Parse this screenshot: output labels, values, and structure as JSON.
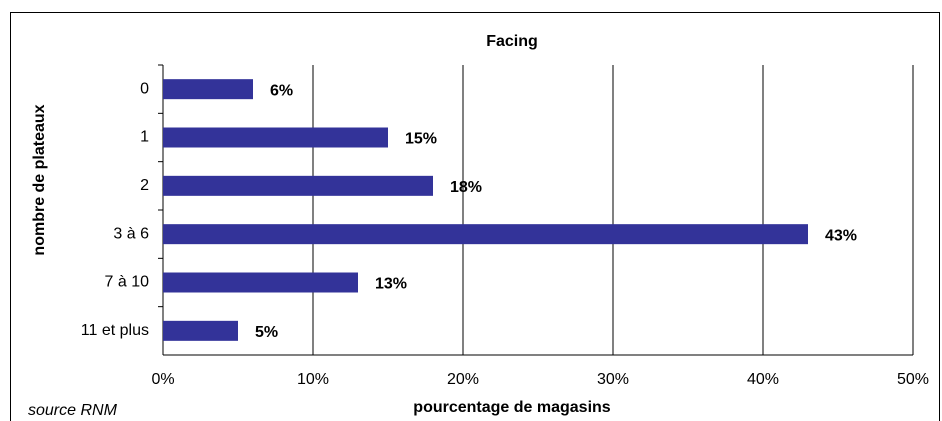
{
  "chart_data": {
    "type": "bar",
    "orientation": "horizontal",
    "title": "Facing",
    "x_label": "pourcentage de magasins",
    "y_label": "nombre de plateaux",
    "source": "source RNM",
    "categories": [
      "0",
      "1",
      "2",
      "3 à 6",
      "7 à 10",
      "11 et plus"
    ],
    "values": [
      6,
      15,
      18,
      43,
      13,
      5
    ],
    "value_labels": [
      "6%",
      "15%",
      "18%",
      "43%",
      "13%",
      "5%"
    ],
    "color": "#333399",
    "label_color": "#1a1a73",
    "xlim": [
      0,
      50
    ],
    "xticks": [
      {
        "value": 0,
        "label": "0%"
      },
      {
        "value": 10,
        "label": "10%"
      },
      {
        "value": 20,
        "label": "20%"
      },
      {
        "value": 30,
        "label": "30%"
      },
      {
        "value": 40,
        "label": "40%"
      },
      {
        "value": 50,
        "label": "50%"
      }
    ],
    "grid": true
  }
}
